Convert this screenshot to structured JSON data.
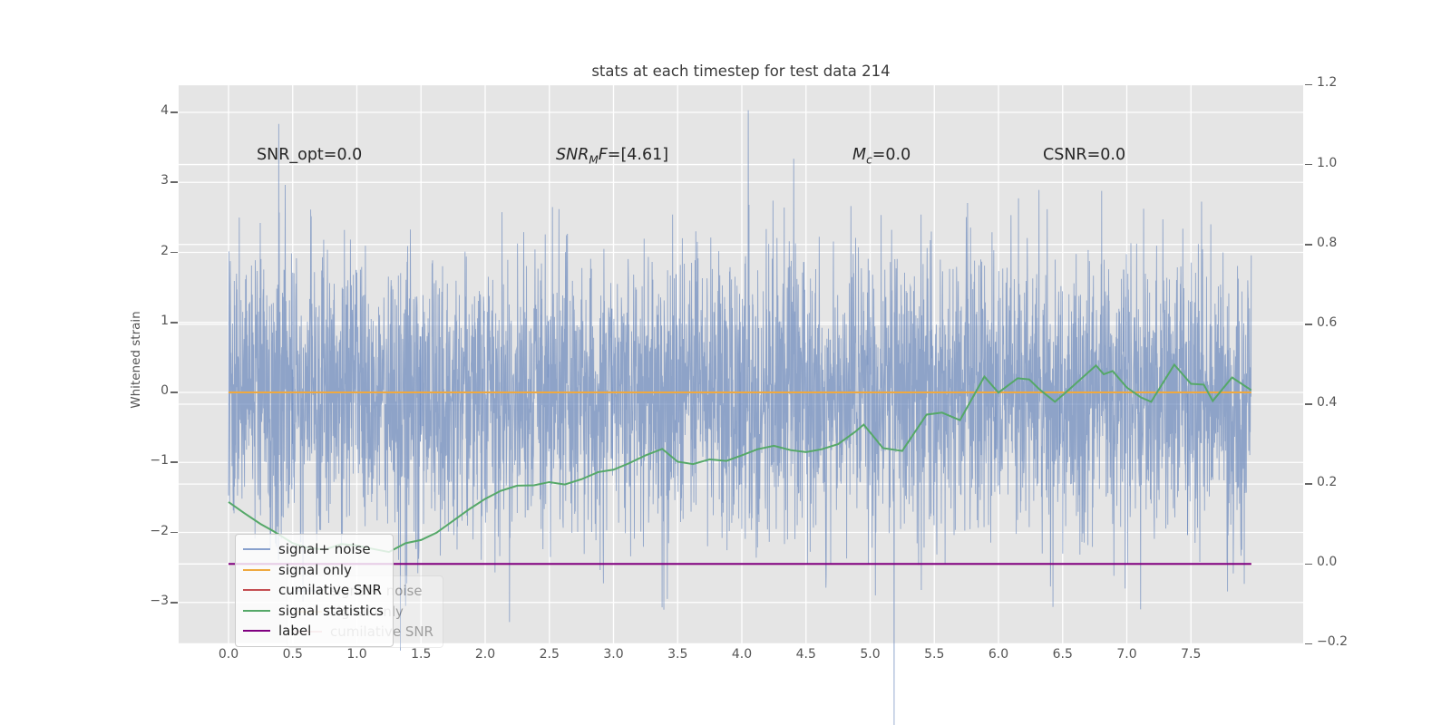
{
  "title": "stats at each timestep for test data 214",
  "annotations": {
    "snr_opt": "SNR_opt=0.0",
    "snr_mf": {
      "base": "SNR",
      "sub": "M",
      "f": "F",
      "rest": "=[4.61]"
    },
    "mc": {
      "base": "M",
      "sub": "c",
      "rest": "=0.0"
    },
    "csnr": "CSNR=0.0"
  },
  "axes": {
    "y_left": {
      "label": "Whitened strain",
      "ticks": [
        "4",
        "3",
        "2",
        "1",
        "0",
        "−1",
        "−2",
        "−3"
      ]
    },
    "y_right": {
      "ticks": [
        "1.2",
        "1.0",
        "0.8",
        "0.6",
        "0.4",
        "0.2",
        "0.0",
        "−0.2"
      ]
    },
    "x": {
      "ticks": [
        "0.0",
        "0.5",
        "1.0",
        "1.5",
        "2.0",
        "2.5",
        "3.0",
        "3.5",
        "4.0",
        "4.5",
        "5.0",
        "5.5",
        "6.0",
        "6.5",
        "7.0",
        "7.5"
      ]
    }
  },
  "legend": {
    "entries": [
      {
        "label": "signal+ noise",
        "color": "#89a1cd"
      },
      {
        "label": "signal only",
        "color": "#efa93f"
      },
      {
        "label": "cumilative SNR",
        "color": "#c44e52"
      },
      {
        "label": "signal statistics",
        "color": "#55a868"
      },
      {
        "label": "label",
        "color": "#800080"
      }
    ],
    "ghost_entries": [
      {
        "label": "signal+ noise",
        "color": "#89a1cd"
      },
      {
        "label": "signal only",
        "color": "#efa93f"
      },
      {
        "label": "cumilative SNR",
        "color": "#c44e52"
      }
    ]
  },
  "chart_data": {
    "type": "line",
    "title": "stats at each timestep for test data 214",
    "xlabel": "",
    "ylabel_left": "Whitened strain",
    "grid": true,
    "plot_background": "#e5e5e5",
    "grid_color": "#ffffff",
    "xlim": [
      -0.39,
      8.37
    ],
    "ylim_left": [
      -3.59,
      4.4
    ],
    "ylim_right": [
      -0.2,
      1.2
    ],
    "x_ticks": [
      0,
      0.5,
      1,
      1.5,
      2,
      2.5,
      3,
      3.5,
      4,
      4.5,
      5,
      5.5,
      6,
      6.5,
      7,
      7.5
    ],
    "yleft_ticks": [
      4,
      3,
      2,
      1,
      0,
      -1,
      -2,
      -3
    ],
    "yright_ticks": [
      1.2,
      1.0,
      0.8,
      0.6,
      0.4,
      0.2,
      0.0,
      -0.2
    ],
    "t_end": 7.97,
    "series": [
      {
        "name": "signal+ noise",
        "axis": "left",
        "kind": "gaussian-noise",
        "color": "#6a87bc",
        "alpha": 0.7,
        "n": 4096,
        "mean": 0,
        "sigma": 1.0,
        "seed": 214,
        "forced_spikes": [
          {
            "t": 1.38,
            "value": -3.05
          },
          {
            "t": 2.19,
            "value": -3.28
          },
          {
            "t": 3.42,
            "value": -2.95
          },
          {
            "t": 4.05,
            "value": 4.03
          },
          {
            "t": 5.04,
            "value": -2.9
          },
          {
            "t": 6.9,
            "value": -2.62
          }
        ]
      },
      {
        "name": "signal only",
        "axis": "left",
        "kind": "constant",
        "value": 0,
        "color": "#efa93f"
      },
      {
        "name": "cumilative SNR",
        "axis": "right",
        "kind": "constant",
        "value": 0,
        "color": "#c44e52"
      },
      {
        "name": "signal statistics",
        "axis": "right",
        "kind": "line",
        "color": "#55a868",
        "points": [
          [
            0.0,
            0.155
          ],
          [
            0.12,
            0.128
          ],
          [
            0.25,
            0.1
          ],
          [
            0.35,
            0.082
          ],
          [
            0.5,
            0.052
          ],
          [
            0.62,
            0.04
          ],
          [
            0.75,
            0.036
          ],
          [
            0.88,
            0.05
          ],
          [
            1.0,
            0.046
          ],
          [
            1.12,
            0.038
          ],
          [
            1.25,
            0.03
          ],
          [
            1.38,
            0.052
          ],
          [
            1.5,
            0.06
          ],
          [
            1.62,
            0.078
          ],
          [
            1.75,
            0.108
          ],
          [
            1.88,
            0.138
          ],
          [
            2.0,
            0.163
          ],
          [
            2.12,
            0.183
          ],
          [
            2.25,
            0.196
          ],
          [
            2.38,
            0.197
          ],
          [
            2.5,
            0.205
          ],
          [
            2.62,
            0.199
          ],
          [
            2.75,
            0.212
          ],
          [
            2.88,
            0.23
          ],
          [
            3.0,
            0.236
          ],
          [
            3.12,
            0.252
          ],
          [
            3.25,
            0.272
          ],
          [
            3.38,
            0.288
          ],
          [
            3.5,
            0.256
          ],
          [
            3.62,
            0.25
          ],
          [
            3.75,
            0.262
          ],
          [
            3.88,
            0.258
          ],
          [
            4.0,
            0.272
          ],
          [
            4.12,
            0.287
          ],
          [
            4.25,
            0.296
          ],
          [
            4.38,
            0.285
          ],
          [
            4.5,
            0.28
          ],
          [
            4.62,
            0.287
          ],
          [
            4.75,
            0.3
          ],
          [
            4.88,
            0.33
          ],
          [
            4.95,
            0.349
          ],
          [
            5.1,
            0.29
          ],
          [
            5.25,
            0.283
          ],
          [
            5.44,
            0.374
          ],
          [
            5.56,
            0.379
          ],
          [
            5.7,
            0.36
          ],
          [
            5.89,
            0.469
          ],
          [
            6.0,
            0.429
          ],
          [
            6.15,
            0.465
          ],
          [
            6.24,
            0.462
          ],
          [
            6.32,
            0.437
          ],
          [
            6.44,
            0.406
          ],
          [
            6.53,
            0.431
          ],
          [
            6.76,
            0.497
          ],
          [
            6.82,
            0.475
          ],
          [
            6.89,
            0.483
          ],
          [
            7.0,
            0.442
          ],
          [
            7.11,
            0.417
          ],
          [
            7.19,
            0.406
          ],
          [
            7.37,
            0.499
          ],
          [
            7.5,
            0.451
          ],
          [
            7.6,
            0.449
          ],
          [
            7.67,
            0.408
          ],
          [
            7.82,
            0.467
          ],
          [
            7.97,
            0.435
          ]
        ]
      },
      {
        "name": "label",
        "axis": "right",
        "kind": "constant",
        "value": 0,
        "color": "#800080"
      }
    ]
  }
}
